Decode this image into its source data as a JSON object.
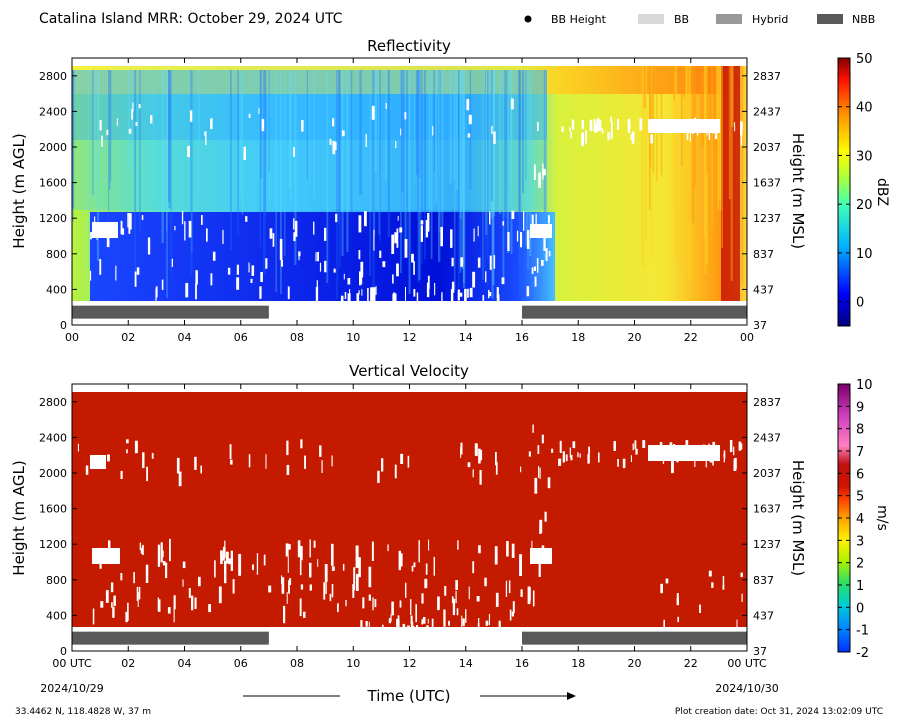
{
  "header": {
    "title": "Catalina Island MRR:  October 29, 2024 UTC",
    "legend": [
      {
        "label": "BB Height",
        "marker": "dot",
        "color": "#000000"
      },
      {
        "label": "BB",
        "marker": "swatch",
        "color": "#d9d9d9"
      },
      {
        "label": "Hybrid",
        "marker": "swatch",
        "color": "#999999"
      },
      {
        "label": "NBB",
        "marker": "swatch",
        "color": "#595959"
      }
    ]
  },
  "chart_data": [
    {
      "type": "heatmap",
      "title": "Reflectivity",
      "ylabel_left": "Height (m AGL)",
      "ylabel_right": "Height (m MSL)",
      "x_ticks": [
        "00",
        "02",
        "04",
        "06",
        "08",
        "10",
        "12",
        "14",
        "16",
        "18",
        "20",
        "22",
        "00"
      ],
      "y_ticks_left": [
        0,
        400,
        800,
        1200,
        1600,
        2000,
        2400,
        2800
      ],
      "y_ticks_right": [
        37,
        437,
        837,
        1237,
        1637,
        2037,
        2437,
        2837
      ],
      "xlim_hours": [
        0,
        24
      ],
      "ylim_m_agl": [
        0,
        3000
      ],
      "colorbar": {
        "label": "dBZ",
        "min": -5,
        "max": 50,
        "ticks": [
          0,
          10,
          20,
          30,
          40,
          50
        ]
      },
      "bright_band_class_periods": [
        {
          "class": "NBB",
          "start_hour": 0,
          "end_hour": 7
        },
        {
          "class": "NBB",
          "start_hour": 16,
          "end_hour": 24
        }
      ]
    },
    {
      "type": "heatmap",
      "title": "Vertical Velocity",
      "ylabel_left": "Height (m AGL)",
      "ylabel_right": "Height (m MSL)",
      "x_ticks": [
        "00 UTC",
        "02",
        "04",
        "06",
        "08",
        "10",
        "12",
        "14",
        "16",
        "18",
        "20",
        "22",
        "00 UTC"
      ],
      "x_date_labels": [
        "2024/10/29",
        "2024/10/30"
      ],
      "xlabel": "Time (UTC)",
      "y_ticks_left": [
        0,
        400,
        800,
        1200,
        1600,
        2000,
        2400,
        2800
      ],
      "y_ticks_right": [
        37,
        437,
        837,
        1237,
        1637,
        2037,
        2437,
        2837
      ],
      "xlim_hours": [
        0,
        24
      ],
      "ylim_m_agl": [
        0,
        3000
      ],
      "colorbar": {
        "label": "m/s",
        "min": -2,
        "max": 10,
        "ticks": [
          -2,
          -1,
          0,
          1,
          2,
          3,
          4,
          5,
          6,
          7,
          8,
          9,
          10
        ]
      },
      "bright_band_class_periods": [
        {
          "class": "NBB",
          "start_hour": 0,
          "end_hour": 7
        },
        {
          "class": "NBB",
          "start_hour": 16,
          "end_hour": 24
        }
      ]
    }
  ],
  "footer": {
    "location": "33.4462 N, 118.4828 W, 37 m",
    "creation_date": "Plot creation date: Oct 31, 2024 13:02:09 UTC"
  },
  "colors": {
    "nbb_bar": "#595959",
    "velocity_field": "#c31a00"
  }
}
